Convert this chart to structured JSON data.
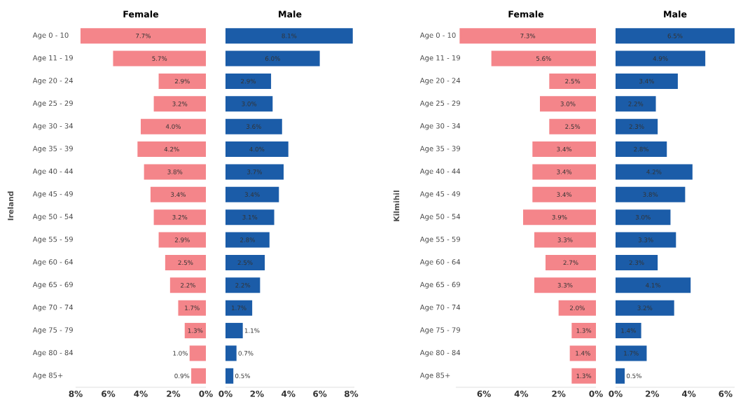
{
  "chart_data": [
    {
      "type": "bar",
      "orientation": "horizontal",
      "title": "Female",
      "ylabel": "Ireland",
      "categories": [
        "Age 0 - 10",
        "Age 11 - 19",
        "Age 20 - 24",
        "Age 25 - 29",
        "Age 30 - 34",
        "Age 35 - 39",
        "Age 40 - 44",
        "Age 45 - 49",
        "Age 50 - 54",
        "Age 55 - 59",
        "Age 60 - 64",
        "Age 65 - 69",
        "Age 70 - 74",
        "Age 75 - 79",
        "Age 80 - 84",
        "Age 85+"
      ],
      "values": [
        7.7,
        5.7,
        2.9,
        3.2,
        4.0,
        4.2,
        3.8,
        3.4,
        3.2,
        2.9,
        2.5,
        2.2,
        1.7,
        1.3,
        1.0,
        0.9
      ],
      "value_labels": [
        "7.7%",
        "5.7%",
        "2.9%",
        "3.2%",
        "4.0%",
        "4.2%",
        "3.8%",
        "3.4%",
        "3.2%",
        "2.9%",
        "2.5%",
        "2.2%",
        "1.7%",
        "1.3%",
        "1.0%",
        "0.9%"
      ],
      "color": "#f4858a",
      "xlim": [
        8,
        0
      ],
      "xticks": [
        {
          "value": 8,
          "label": "8%"
        },
        {
          "value": 6,
          "label": "6%"
        },
        {
          "value": 4,
          "label": "4%"
        },
        {
          "value": 2,
          "label": "2%"
        },
        {
          "value": 0,
          "label": "0%"
        }
      ]
    },
    {
      "type": "bar",
      "orientation": "horizontal",
      "title": "Male",
      "categories": [
        null,
        null,
        null,
        null,
        null,
        null,
        null,
        null,
        null,
        null,
        null,
        null,
        null,
        null,
        null,
        null
      ],
      "values": [
        8.1,
        6.0,
        2.9,
        3.0,
        3.6,
        4.0,
        3.7,
        3.4,
        3.1,
        2.8,
        2.5,
        2.2,
        1.7,
        1.1,
        0.7,
        0.5
      ],
      "value_labels": [
        "8.1%",
        "6.0%",
        "2.9%",
        "3.0%",
        "3.6%",
        "4.0%",
        "3.7%",
        "3.4%",
        "3.1%",
        "2.8%",
        "2.5%",
        "2.2%",
        "1.7%",
        "1.1%",
        "0.7%",
        "0.5%"
      ],
      "color": "#1b5ca8",
      "xlim": [
        0,
        8.2
      ],
      "xticks": [
        {
          "value": 0,
          "label": "0%"
        },
        {
          "value": 2,
          "label": "2%"
        },
        {
          "value": 4,
          "label": "4%"
        },
        {
          "value": 6,
          "label": "6%"
        },
        {
          "value": 8,
          "label": "8%"
        }
      ]
    },
    {
      "type": "bar",
      "orientation": "horizontal",
      "title": "Female",
      "ylabel": "Kilmihil",
      "categories": [
        "Age 0 - 10",
        "Age 11 - 19",
        "Age 20 - 24",
        "Age 25 - 29",
        "Age 30 - 34",
        "Age 35 - 39",
        "Age 40 - 44",
        "Age 45 - 49",
        "Age 50 - 54",
        "Age 55 - 59",
        "Age 60 - 64",
        "Age 65 - 69",
        "Age 70 - 74",
        "Age 75 - 79",
        "Age 80 - 84",
        "Age 85+"
      ],
      "values": [
        7.3,
        5.6,
        2.5,
        3.0,
        2.5,
        3.4,
        3.4,
        3.4,
        3.9,
        3.3,
        2.7,
        3.3,
        2.0,
        1.3,
        1.4,
        1.3
      ],
      "value_labels": [
        "7.3%",
        "5.6%",
        "2.5%",
        "3.0%",
        "2.5%",
        "3.4%",
        "3.4%",
        "3.4%",
        "3.9%",
        "3.3%",
        "2.7%",
        "3.3%",
        "2.0%",
        "1.3%",
        "1.4%",
        "1.3%"
      ],
      "color": "#f4858a",
      "xlim": [
        7.5,
        0
      ],
      "xticks": [
        {
          "value": 6,
          "label": "6%"
        },
        {
          "value": 4,
          "label": "4%"
        },
        {
          "value": 2,
          "label": "2%"
        },
        {
          "value": 0,
          "label": "0%"
        }
      ]
    },
    {
      "type": "bar",
      "orientation": "horizontal",
      "title": "Male",
      "categories": [
        null,
        null,
        null,
        null,
        null,
        null,
        null,
        null,
        null,
        null,
        null,
        null,
        null,
        null,
        null,
        null
      ],
      "values": [
        6.5,
        4.9,
        3.4,
        2.2,
        2.3,
        2.8,
        4.2,
        3.8,
        3.0,
        3.3,
        2.3,
        4.1,
        3.2,
        1.4,
        1.7,
        0.5
      ],
      "value_labels": [
        "6.5%",
        "4.9%",
        "3.4%",
        "2.2%",
        "2.3%",
        "2.8%",
        "4.2%",
        "3.8%",
        "3.0%",
        "3.3%",
        "2.3%",
        "4.1%",
        "3.2%",
        "1.4%",
        "1.7%",
        "0.5%"
      ],
      "color": "#1b5ca8",
      "xlim": [
        0,
        6.5
      ],
      "xticks": [
        {
          "value": 0,
          "label": "0%"
        },
        {
          "value": 2,
          "label": "2%"
        },
        {
          "value": 4,
          "label": "4%"
        },
        {
          "value": 6,
          "label": "6%"
        }
      ]
    }
  ]
}
